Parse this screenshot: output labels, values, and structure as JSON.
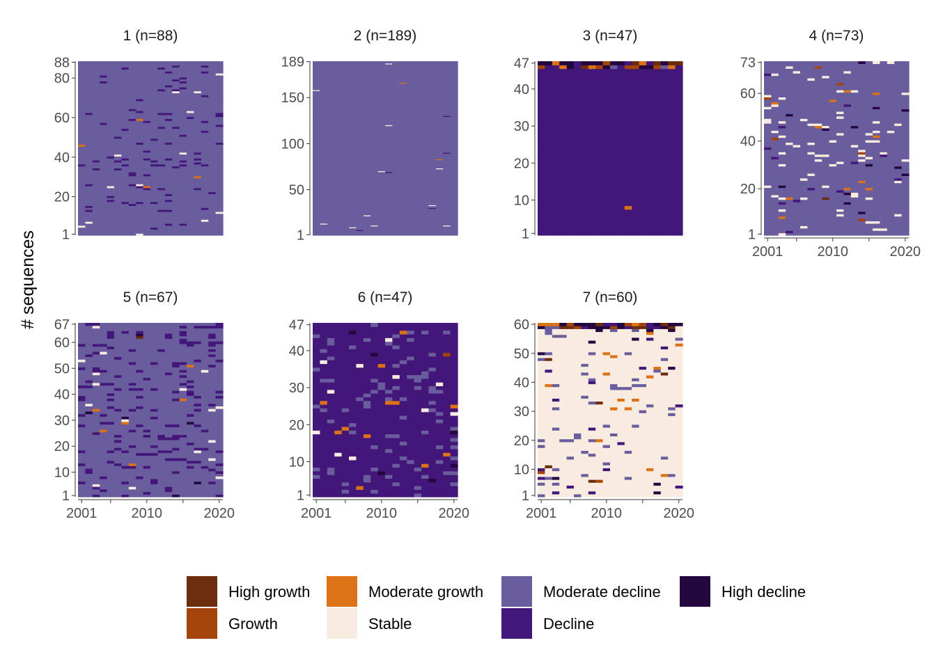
{
  "chart_data": {
    "type": "heatmap",
    "subtype": "sequence index plot",
    "ylabel": "# sequences",
    "x_range": [
      2001,
      2020
    ],
    "x_ticks": [
      2001,
      2010,
      2020
    ],
    "states": [
      {
        "name": "High growth",
        "color": "#6b2d0e"
      },
      {
        "name": "Growth",
        "color": "#a5440a"
      },
      {
        "name": "Moderate growth",
        "color": "#db7216"
      },
      {
        "name": "Stable",
        "color": "#f8ebdf"
      },
      {
        "name": "Moderate decline",
        "color": "#6a5d9e"
      },
      {
        "name": "Decline",
        "color": "#431679"
      },
      {
        "name": "High decline",
        "color": "#25073f"
      }
    ],
    "legend_position": "bottom",
    "panels": [
      {
        "title": "1 (n=88)",
        "n": 88,
        "y_ticks": [
          1,
          20,
          40,
          60,
          80,
          88
        ],
        "dominant_state": "Moderate decline",
        "show_x_axis": false
      },
      {
        "title": "2 (n=189)",
        "n": 189,
        "y_ticks": [
          1,
          50,
          100,
          150,
          189
        ],
        "dominant_state": "Moderate decline",
        "show_x_axis": false
      },
      {
        "title": "3 (n=47)",
        "n": 47,
        "y_ticks": [
          1,
          10,
          20,
          30,
          40,
          47
        ],
        "dominant_state": "Decline",
        "show_x_axis": false
      },
      {
        "title": "4 (n=73)",
        "n": 73,
        "y_ticks": [
          1,
          20,
          40,
          60,
          73
        ],
        "dominant_state": "Moderate decline",
        "show_x_axis": true
      },
      {
        "title": "5 (n=67)",
        "n": 67,
        "y_ticks": [
          1,
          10,
          20,
          30,
          40,
          50,
          60,
          67
        ],
        "dominant_state": "Moderate decline",
        "show_x_axis": true
      },
      {
        "title": "6 (n=47)",
        "n": 47,
        "y_ticks": [
          1,
          10,
          20,
          30,
          40,
          47
        ],
        "dominant_state": "Decline",
        "show_x_axis": true
      },
      {
        "title": "7 (n=60)",
        "n": 60,
        "y_ticks": [
          1,
          10,
          20,
          30,
          40,
          50,
          60
        ],
        "dominant_state": "Stable",
        "show_x_axis": true
      }
    ]
  }
}
